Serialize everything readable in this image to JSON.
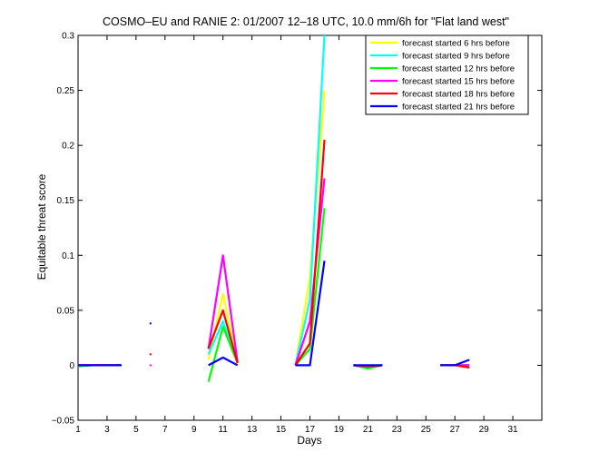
{
  "chart_data": {
    "type": "line",
    "title": "COSMO–EU and RANIE 2: 01/2007 12–18 UTC, 10.0 mm/6h for \"Flat land west\"",
    "xlabel": "Days",
    "ylabel": "Equitable threat score",
    "xlim": [
      1,
      33
    ],
    "ylim": [
      -0.05,
      0.3
    ],
    "xticks": [
      1,
      3,
      5,
      7,
      9,
      11,
      13,
      15,
      17,
      19,
      21,
      23,
      25,
      27,
      29,
      31
    ],
    "yticks": [
      -0.05,
      0,
      0.05,
      0.1,
      0.15,
      0.2,
      0.25,
      0.3
    ],
    "ytick_labels": [
      "−0.05",
      "0",
      "0.05",
      "0.1",
      "0.15",
      "0.2",
      "0.25",
      "0.3"
    ],
    "legend_position": "top-right",
    "grid": false,
    "series": [
      {
        "name": "forecast started 6 hrs before",
        "color": "#ffff00",
        "segments": [
          [
            [
              1,
              0
            ],
            [
              2,
              0
            ],
            [
              3,
              0
            ],
            [
              4,
              0
            ]
          ],
          [
            [
              10,
              0.005
            ],
            [
              11,
              0.065
            ],
            [
              12,
              0.002
            ]
          ],
          [
            [
              16,
              0
            ],
            [
              17,
              0.08
            ],
            [
              18,
              0.25
            ]
          ],
          [
            [
              20,
              0
            ],
            [
              21,
              -0.001
            ],
            [
              22,
              0
            ]
          ],
          [
            [
              26,
              0
            ],
            [
              27,
              0
            ],
            [
              28,
              -0.001
            ]
          ]
        ],
        "points": []
      },
      {
        "name": "forecast started 9 hrs before",
        "color": "#00ffff",
        "segments": [
          [
            [
              1,
              0
            ],
            [
              2,
              0
            ],
            [
              3,
              0
            ],
            [
              4,
              0
            ]
          ],
          [
            [
              10,
              0.01
            ],
            [
              11,
              0.04
            ],
            [
              12,
              0.002
            ]
          ],
          [
            [
              16,
              0
            ],
            [
              17,
              0.06
            ],
            [
              18,
              0.3
            ]
          ],
          [
            [
              20,
              0
            ],
            [
              21,
              -0.001
            ],
            [
              22,
              0
            ]
          ],
          [
            [
              26,
              0
            ],
            [
              27,
              0
            ],
            [
              28,
              0
            ]
          ]
        ],
        "points": []
      },
      {
        "name": "forecast started 12 hrs before",
        "color": "#00ff00",
        "segments": [
          [
            [
              1,
              -0.001
            ],
            [
              2,
              0
            ],
            [
              3,
              0
            ],
            [
              4,
              0
            ]
          ],
          [
            [
              10,
              -0.015
            ],
            [
              11,
              0.035
            ],
            [
              12,
              0.002
            ]
          ],
          [
            [
              16,
              0
            ],
            [
              17,
              0.015
            ],
            [
              18,
              0.143
            ]
          ],
          [
            [
              20,
              0
            ],
            [
              21,
              -0.003
            ],
            [
              22,
              0
            ]
          ],
          [
            [
              26,
              0
            ],
            [
              27,
              0
            ],
            [
              28,
              0
            ]
          ]
        ],
        "points": []
      },
      {
        "name": "forecast started 15 hrs before",
        "color": "#ff00ff",
        "segments": [
          [
            [
              1,
              0
            ],
            [
              2,
              0
            ],
            [
              3,
              0
            ],
            [
              4,
              0
            ]
          ],
          [
            [
              10,
              0.015
            ],
            [
              11,
              0.1
            ],
            [
              12,
              0.003
            ]
          ],
          [
            [
              16,
              0
            ],
            [
              17,
              0.04
            ],
            [
              18,
              0.17
            ]
          ],
          [
            [
              20,
              0
            ],
            [
              21,
              -0.001
            ],
            [
              22,
              0
            ]
          ],
          [
            [
              26,
              0
            ],
            [
              27,
              0
            ],
            [
              28,
              0
            ]
          ]
        ],
        "points": [
          [
            6,
            0
          ]
        ]
      },
      {
        "name": "forecast started 18 hrs before",
        "color": "#ff0000",
        "segments": [
          [
            [
              1,
              0
            ],
            [
              2,
              0
            ],
            [
              3,
              0
            ],
            [
              4,
              0
            ]
          ],
          [
            [
              10,
              0.015
            ],
            [
              11,
              0.05
            ],
            [
              12,
              0.002
            ]
          ],
          [
            [
              16,
              0
            ],
            [
              17,
              0.02
            ],
            [
              18,
              0.205
            ]
          ],
          [
            [
              20,
              0
            ],
            [
              21,
              -0.001
            ],
            [
              22,
              0
            ]
          ],
          [
            [
              26,
              0
            ],
            [
              27,
              0
            ],
            [
              28,
              -0.002
            ]
          ]
        ],
        "points": [
          [
            6,
            0.01
          ]
        ]
      },
      {
        "name": "forecast started 21 hrs before",
        "color": "#0000ff",
        "segments": [
          [
            [
              1,
              0
            ],
            [
              2,
              0
            ],
            [
              3,
              0
            ],
            [
              4,
              0
            ]
          ],
          [
            [
              10,
              0
            ],
            [
              11,
              0.007
            ],
            [
              12,
              0
            ]
          ],
          [
            [
              16,
              0
            ],
            [
              17,
              0
            ],
            [
              18,
              0.095
            ]
          ],
          [
            [
              20,
              0
            ],
            [
              21,
              0
            ],
            [
              22,
              0
            ]
          ],
          [
            [
              26,
              0
            ],
            [
              27,
              0
            ],
            [
              28,
              0.005
            ]
          ]
        ],
        "points": [
          [
            6,
            0.038
          ]
        ]
      }
    ]
  }
}
